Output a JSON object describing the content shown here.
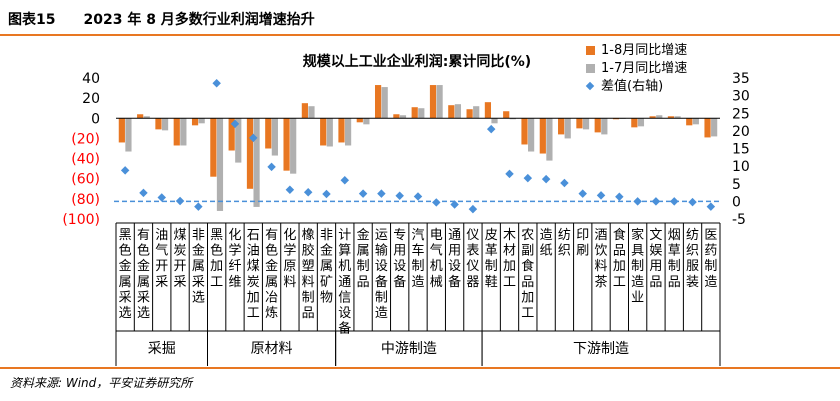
{
  "header": {
    "title": "图表15　　2023 年 8 月多数行业利润增速抬升"
  },
  "source": "资料来源: Wind，平安证券研究所",
  "colors": {
    "series1": "#e87722",
    "series2": "#b0b0b0",
    "diff": "#4a90d9",
    "baseline": "#4a90d9",
    "rule": "#e87722",
    "negTick": "#ff0000"
  },
  "chart_data": {
    "type": "bar",
    "title": "规模以上工业企业利润:累计同比(%)",
    "categories": [
      "黑色金属采选",
      "有色金属采选",
      "油气开采",
      "煤炭开采",
      "非金属采选",
      "黑色加工",
      "化学纤维",
      "石油煤炭加工",
      "有色金属冶炼",
      "化学原料",
      "橡胶塑料制品",
      "非金属矿物",
      "计算机通信设备",
      "金属制品",
      "运输设备制造",
      "专用设备",
      "汽车制造",
      "电气机械",
      "通用设备",
      "仪表仪器",
      "皮革制鞋",
      "木材加工",
      "农副食品加工",
      "造纸",
      "纺织",
      "印刷",
      "酒饮料茶",
      "食品加工",
      "家具制造业",
      "文娱用品",
      "烟草制品",
      "纺织服装",
      "医药制造"
    ],
    "category_lines": [
      [
        "黑",
        "色",
        "金",
        "属",
        "采",
        "选"
      ],
      [
        "有",
        "色",
        "金",
        "属",
        "采",
        "选"
      ],
      [
        "油",
        "气",
        "开",
        "采"
      ],
      [
        "煤",
        "炭",
        "开",
        "采"
      ],
      [
        "非",
        "金",
        "属",
        "采",
        "选"
      ],
      [
        "黑",
        "色",
        "加",
        "工"
      ],
      [
        "化",
        "学",
        "纤",
        "维"
      ],
      [
        "石",
        "油",
        "煤",
        "炭",
        "加",
        "工"
      ],
      [
        "有",
        "色",
        "金",
        "属",
        "冶",
        "炼"
      ],
      [
        "化",
        "学",
        "原",
        "料"
      ],
      [
        "橡",
        "胶",
        "塑",
        "料",
        "制",
        "品"
      ],
      [
        "非",
        "金",
        "属",
        "矿",
        "物"
      ],
      [
        "计",
        "算",
        "机",
        "通",
        "信",
        "设",
        "备"
      ],
      [
        "金",
        "属",
        "制",
        "品"
      ],
      [
        "运",
        "输",
        "设",
        "备",
        "制",
        "造"
      ],
      [
        "专",
        "用",
        "设",
        "备"
      ],
      [
        "汽",
        "车",
        "制",
        "造"
      ],
      [
        "电",
        "气",
        "机",
        "械"
      ],
      [
        "通",
        "用",
        "设",
        "备"
      ],
      [
        "仪",
        "表",
        "仪",
        "器"
      ],
      [
        "皮",
        "革",
        "制",
        "鞋"
      ],
      [
        "木",
        "材",
        "加",
        "工"
      ],
      [
        "农",
        "副",
        "食",
        "品",
        "加",
        "工"
      ],
      [
        "造",
        "纸"
      ],
      [
        "纺",
        "织"
      ],
      [
        "印",
        "刷"
      ],
      [
        "酒",
        "饮",
        "料",
        "茶"
      ],
      [
        "食",
        "品",
        "加",
        "工"
      ],
      [
        "家",
        "具",
        "制",
        "造",
        "业"
      ],
      [
        "文",
        "娱",
        "用",
        "品"
      ],
      [
        "烟",
        "草",
        "制",
        "品"
      ],
      [
        "纺",
        "织",
        "服",
        "装"
      ],
      [
        "医",
        "药",
        "制",
        "造"
      ]
    ],
    "groups": [
      {
        "label": "采掘",
        "start": 0,
        "end": 4
      },
      {
        "label": "原材料",
        "start": 5,
        "end": 11
      },
      {
        "label": "中游制造",
        "start": 12,
        "end": 19
      },
      {
        "label": "下游制造",
        "start": 20,
        "end": 32
      }
    ],
    "series": [
      {
        "name": "1-8月同比增速",
        "axis": "left",
        "kind": "bar",
        "values": [
          -24,
          4,
          -11,
          -27,
          -7,
          -58,
          -32,
          -70,
          -30,
          -52,
          15,
          -27,
          -24,
          -4,
          33,
          4,
          11,
          33,
          13,
          9,
          16,
          7,
          -26,
          -35,
          -16,
          -10,
          -14,
          -1,
          -9,
          2,
          2,
          -7,
          -19
        ]
      },
      {
        "name": "1-7月同比增速",
        "axis": "left",
        "kind": "bar",
        "values": [
          -33,
          2,
          -12,
          -27,
          -5,
          -92,
          -44,
          -88,
          -37,
          -55,
          12,
          -28,
          -27,
          -6,
          31,
          3,
          10,
          33,
          14,
          12,
          -5,
          -1,
          -33,
          -42,
          -20,
          -11,
          -16,
          0,
          -8,
          3,
          2,
          -6,
          -18
        ]
      },
      {
        "name": "差值(右轴)",
        "axis": "right",
        "kind": "scatter",
        "values": [
          8.8,
          2.4,
          1.1,
          0.1,
          -1.5,
          33.5,
          22,
          18,
          9.8,
          3.3,
          2.6,
          2.1,
          6,
          2.2,
          2.2,
          1.6,
          1.4,
          -0.3,
          -0.9,
          -2.2,
          20.5,
          7.8,
          6.6,
          6.3,
          5.2,
          2.2,
          1.7,
          1.3,
          0,
          0,
          0,
          -0.2,
          -1.5
        ]
      }
    ],
    "y_left": {
      "ylim": [
        -100,
        40
      ],
      "ticks": [
        40,
        20,
        0,
        -20,
        -40,
        -60,
        -80,
        -100
      ],
      "tick_labels": [
        "40",
        "20",
        "0",
        "(20)",
        "(40)",
        "(60)",
        "(80)",
        "(100)"
      ]
    },
    "y_right": {
      "ylim": [
        -5,
        35
      ],
      "ticks": [
        35,
        30,
        25,
        20,
        15,
        10,
        5,
        0,
        -5
      ],
      "tick_labels": [
        "35",
        "30",
        "25",
        "20",
        "15",
        "10",
        "5",
        "0",
        "-5"
      ]
    },
    "legend_position": "top-right",
    "grid": false
  }
}
